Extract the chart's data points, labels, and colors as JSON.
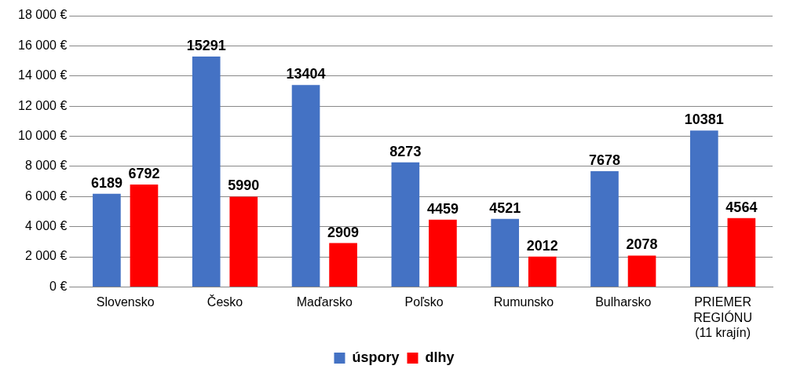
{
  "chart_data": {
    "type": "bar",
    "categories": [
      "Slovensko",
      "Česko",
      "Maďarsko",
      "Poľsko",
      "Rumunsko",
      "Bulharsko",
      "PRIEMER REGIÓNU (11 krajín)"
    ],
    "series": [
      {
        "name": "úspory",
        "color": "#4472c4",
        "values": [
          6189,
          15291,
          13404,
          8273,
          4521,
          7678,
          10381
        ]
      },
      {
        "name": "dlhy",
        "color": "#ff0000",
        "values": [
          6792,
          5990,
          2909,
          4459,
          2012,
          2078,
          4564
        ]
      }
    ],
    "ylim": [
      0,
      18000
    ],
    "yticks": [
      {
        "value": 0,
        "label": "0 €"
      },
      {
        "value": 2000,
        "label": "2 000 €"
      },
      {
        "value": 4000,
        "label": "4 000 €"
      },
      {
        "value": 6000,
        "label": "6 000 €"
      },
      {
        "value": 8000,
        "label": "8 000 €"
      },
      {
        "value": 10000,
        "label": "10 000 €"
      },
      {
        "value": 12000,
        "label": "12 000 €"
      },
      {
        "value": 14000,
        "label": "14 000 €"
      },
      {
        "value": 16000,
        "label": "16 000 €"
      },
      {
        "value": 18000,
        "label": "18 000 €"
      }
    ],
    "grid": "y",
    "legend": "bottom",
    "data_labels": true
  }
}
